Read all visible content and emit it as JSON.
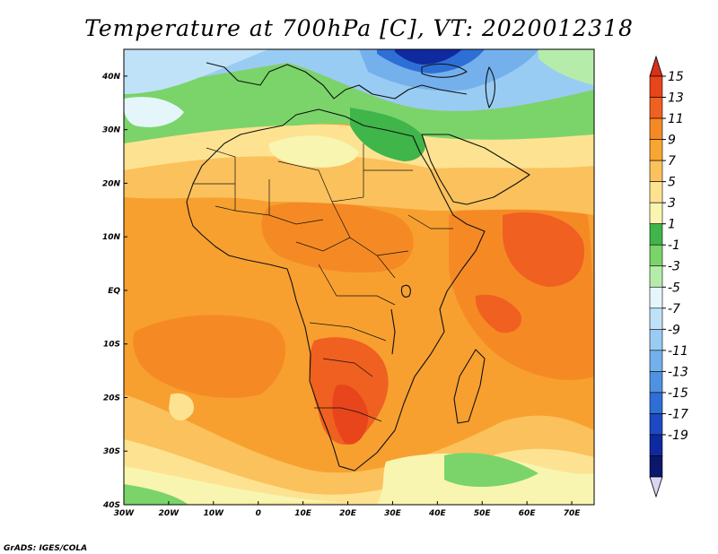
{
  "title": "Temperature at 700hPa [C], VT: 2020012318",
  "credit": "GrADS: IGES/COLA",
  "map": {
    "lon_range": [
      -30,
      75
    ],
    "lat_range": [
      -40,
      45
    ],
    "x_ticks": [
      {
        "lon": -30,
        "label": "30W"
      },
      {
        "lon": -20,
        "label": "20W"
      },
      {
        "lon": -10,
        "label": "10W"
      },
      {
        "lon": 0,
        "label": "0"
      },
      {
        "lon": 10,
        "label": "10E"
      },
      {
        "lon": 20,
        "label": "20E"
      },
      {
        "lon": 30,
        "label": "30E"
      },
      {
        "lon": 40,
        "label": "40E"
      },
      {
        "lon": 50,
        "label": "50E"
      },
      {
        "lon": 60,
        "label": "60E"
      },
      {
        "lon": 70,
        "label": "70E"
      }
    ],
    "y_ticks": [
      {
        "lat": 40,
        "label": "40N"
      },
      {
        "lat": 30,
        "label": "30N"
      },
      {
        "lat": 20,
        "label": "20N"
      },
      {
        "lat": 10,
        "label": "10N"
      },
      {
        "lat": 0,
        "label": "EQ"
      },
      {
        "lat": -10,
        "label": "10S"
      },
      {
        "lat": -20,
        "label": "20S"
      },
      {
        "lat": -30,
        "label": "30S"
      },
      {
        "lat": -40,
        "label": "40S"
      }
    ]
  },
  "colorbar": {
    "labels": [
      "15",
      "13",
      "11",
      "9",
      "7",
      "5",
      "3",
      "1",
      "-1",
      "-3",
      "-5",
      "-7",
      "-9",
      "-11",
      "-13",
      "-15",
      "-17",
      "-19"
    ],
    "bins": [
      {
        "color": "#e8451c"
      },
      {
        "color": "#f06020"
      },
      {
        "color": "#f58a24"
      },
      {
        "color": "#f8a632"
      },
      {
        "color": "#fbc15c"
      },
      {
        "color": "#fde391"
      },
      {
        "color": "#f8f5b0"
      },
      {
        "color": "#3fb54a"
      },
      {
        "color": "#7ad46a"
      },
      {
        "color": "#b6ecaa"
      },
      {
        "color": "#e5f6fb"
      },
      {
        "color": "#c0e2f8"
      },
      {
        "color": "#99ccf3"
      },
      {
        "color": "#74b1ec"
      },
      {
        "color": "#4f92e2"
      },
      {
        "color": "#2e6fd6"
      },
      {
        "color": "#1d49c4"
      },
      {
        "color": "#0f2a9f"
      },
      {
        "color": "#0a176a"
      }
    ],
    "top_arrow_color": "#d8301a",
    "bottom_arrow_color": "#d9d6f5"
  }
}
